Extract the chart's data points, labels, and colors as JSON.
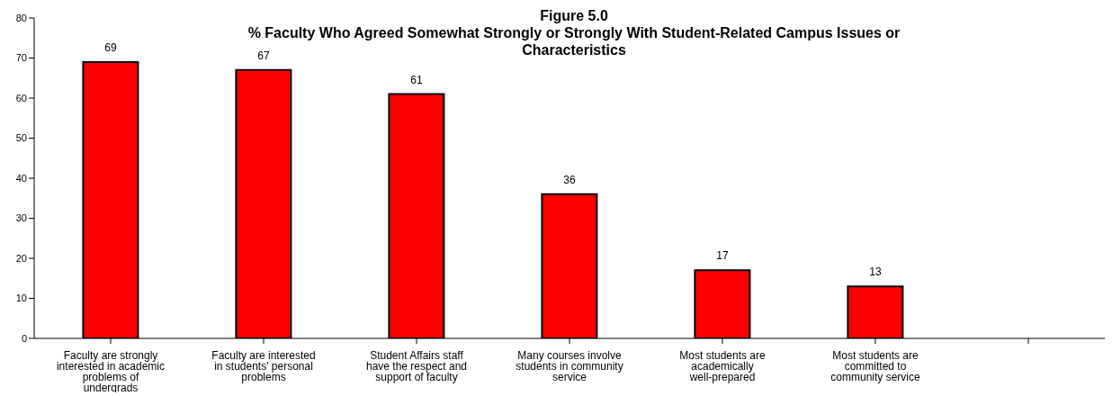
{
  "chart_data": {
    "type": "bar",
    "title": "Figure 5.0",
    "subtitle": "% Faculty Who Agreed Somewhat Strongly or Strongly With Student-Related Campus Issues or Characteristics",
    "categories": [
      "Faculty are strongly interested in academic problems of undergrads",
      "Faculty are interested in students' personal problems",
      "Student Affairs staff have the respect and support of faculty",
      "Many courses involve students in community service",
      "Most students are academically well-prepared",
      "Most students are committed to community service",
      null
    ],
    "values": [
      69,
      67,
      61,
      36,
      17,
      13,
      null
    ],
    "color": "#ff0000",
    "ylim": [
      0,
      80
    ],
    "yticks": [
      0,
      10,
      20,
      30,
      40,
      50,
      60,
      70,
      80
    ],
    "grid": false,
    "data_labels": true,
    "legend": false
  }
}
